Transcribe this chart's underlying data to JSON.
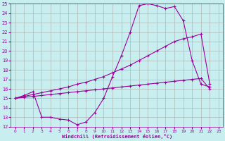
{
  "background_color": "#c8eef0",
  "line_color": "#990099",
  "grid_color": "#aaaaaa",
  "xlabel": "Windchill (Refroidissement éolien,°C)",
  "xlim": [
    -0.5,
    23.5
  ],
  "ylim": [
    12,
    25
  ],
  "xticks": [
    0,
    1,
    2,
    3,
    4,
    5,
    6,
    7,
    8,
    9,
    10,
    11,
    12,
    13,
    14,
    15,
    16,
    17,
    18,
    19,
    20,
    21,
    22,
    23
  ],
  "yticks": [
    12,
    13,
    14,
    15,
    16,
    17,
    18,
    19,
    20,
    21,
    22,
    23,
    24,
    25
  ],
  "line1_x": [
    0,
    1,
    2,
    3,
    4,
    5,
    6,
    7,
    8,
    9,
    10,
    11,
    12,
    13,
    14,
    15,
    16,
    17,
    18,
    19,
    20,
    21,
    22
  ],
  "line1_y": [
    15,
    15.1,
    15.2,
    15.3,
    15.4,
    15.5,
    15.6,
    15.7,
    15.8,
    15.9,
    16.0,
    16.1,
    16.2,
    16.3,
    16.4,
    16.5,
    16.6,
    16.7,
    16.8,
    16.9,
    17.0,
    17.1,
    16.0
  ],
  "line2_x": [
    0,
    1,
    2,
    3,
    4,
    5,
    6,
    7,
    8,
    9,
    10,
    11,
    12,
    13,
    14,
    15,
    16,
    17,
    18,
    19,
    20,
    21,
    22
  ],
  "line2_y": [
    15,
    15.2,
    15.4,
    15.6,
    15.8,
    16.0,
    16.2,
    16.5,
    16.7,
    17.0,
    17.3,
    17.7,
    18.1,
    18.5,
    19.0,
    19.5,
    20.0,
    20.5,
    21.0,
    21.3,
    21.5,
    21.8,
    16.5
  ],
  "line3_x": [
    0,
    1,
    2,
    3,
    4,
    5,
    6,
    7,
    8,
    9,
    10,
    11,
    12,
    13,
    14,
    15,
    16,
    17,
    18,
    19,
    20,
    21,
    22
  ],
  "line3_y": [
    15,
    15.3,
    15.7,
    13.0,
    13.0,
    12.8,
    12.7,
    12.2,
    12.5,
    13.5,
    15.0,
    17.3,
    19.5,
    22.0,
    24.8,
    25.0,
    24.8,
    24.5,
    24.7,
    23.2,
    19.0,
    16.5,
    16.2
  ]
}
